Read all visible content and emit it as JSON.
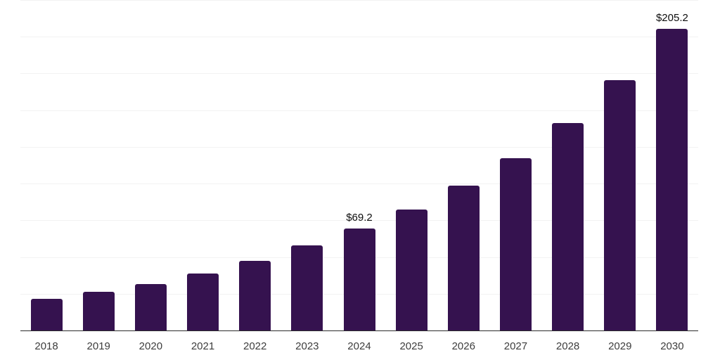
{
  "chart_data": {
    "type": "bar",
    "title": "",
    "xlabel": "",
    "ylabel": "",
    "categories": [
      "2018",
      "2019",
      "2020",
      "2021",
      "2022",
      "2023",
      "2024",
      "2025",
      "2026",
      "2027",
      "2028",
      "2029",
      "2030"
    ],
    "values": [
      21.6,
      26.4,
      31.7,
      38.8,
      47.4,
      58.0,
      69.2,
      82.3,
      98.4,
      117.5,
      141.0,
      170.4,
      205.2
    ],
    "annotations": [
      {
        "category": "2024",
        "label": "$69.2"
      },
      {
        "category": "2030",
        "label": "$205.2"
      }
    ],
    "ylim": [
      0,
      225
    ],
    "grid_step": 25,
    "grid": "horizontal-only",
    "legend": "none",
    "y_axis_tick_labels": "none",
    "colors": {
      "bar": "#35124f",
      "gridline": "#f2f2f2",
      "axis_line": "#2b2b2b",
      "tick_label": "#3d3d3d",
      "value_label": "#0d0d0d",
      "background": "#ffffff"
    }
  }
}
